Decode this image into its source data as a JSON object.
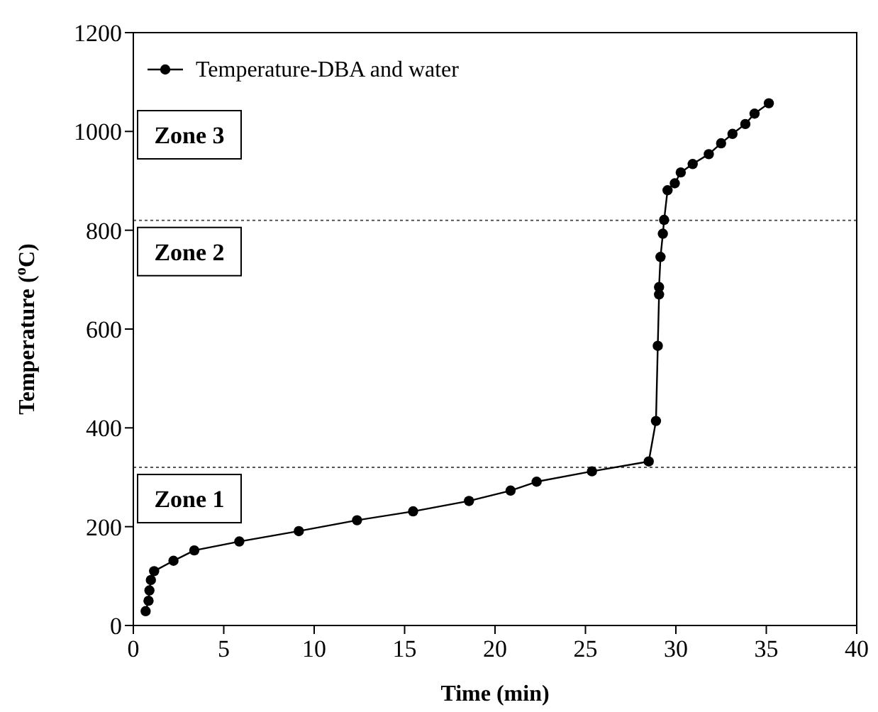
{
  "chart_data": {
    "type": "line",
    "xlabel": "Time (min)",
    "ylabel": "Temperature ($^{o}$C)",
    "xlim": [
      0,
      40
    ],
    "xticks": [
      0,
      5,
      10,
      15,
      20,
      25,
      30,
      35,
      40
    ],
    "ylim": [
      0,
      1200
    ],
    "yticks": [
      0,
      200,
      400,
      600,
      800,
      1000,
      1200
    ],
    "grid": false,
    "legend": "top left",
    "marker": "circle",
    "line_style": "solid",
    "series": [
      {
        "name": "Temperature-DBA and water",
        "color": "#000000",
        "x": [
          0.68,
          0.84,
          0.89,
          0.97,
          1.15,
          2.22,
          3.37,
          5.86,
          9.15,
          12.37,
          15.47,
          18.56,
          20.86,
          22.3,
          25.36,
          28.5,
          28.9,
          29.0,
          29.07,
          29.07,
          29.15,
          29.28,
          29.35,
          29.54,
          29.94,
          30.27,
          30.93,
          31.82,
          32.5,
          33.13,
          33.84,
          34.35,
          35.14
        ],
        "values": [
          29,
          50,
          71,
          92,
          110,
          131,
          152,
          170,
          191,
          213,
          231,
          252,
          273,
          291,
          312,
          332,
          414,
          566,
          670,
          685,
          746,
          793,
          821,
          881,
          895,
          917,
          934,
          954,
          976,
          995,
          1015,
          1036,
          1057
        ]
      }
    ],
    "ref_lines": [
      {
        "axis": "y",
        "value": 320,
        "line_style": "dotted",
        "color": "#555555"
      },
      {
        "axis": "y",
        "value": 820,
        "line_style": "dotted",
        "color": "#555555"
      }
    ],
    "annotations": [
      "Zone 1",
      "Zone 2",
      "Zone 3"
    ]
  }
}
